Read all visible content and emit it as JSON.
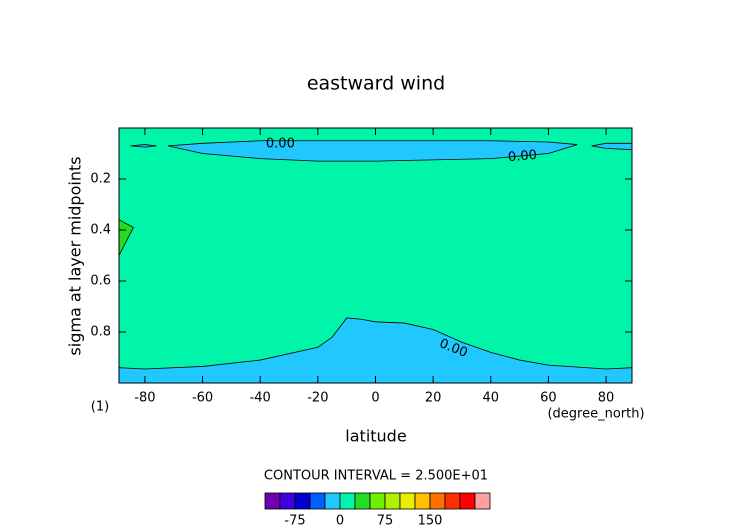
{
  "chart_data": {
    "type": "contour",
    "title": "eastward wind",
    "x_label": "latitude",
    "x_unit": "(degree_north)",
    "y_label": "sigma at layer midpoints",
    "corner_label": "(1)",
    "interval_label": "CONTOUR INTERVAL = 2.500E+01",
    "xlim": [
      -89,
      89
    ],
    "xticks": [
      -80,
      -60,
      -40,
      -20,
      0,
      20,
      40,
      60,
      80
    ],
    "ylim": [
      0,
      1
    ],
    "y_inverted": true,
    "yticks": [
      0.2,
      0.4,
      0.6,
      0.8
    ],
    "background_fill": "#00f5a8",
    "contours": [
      {
        "level": 0,
        "label": "0.00",
        "fill": "#20c8ff",
        "x": [
          -72,
          -60,
          -40,
          -20,
          0,
          20,
          40,
          60,
          70,
          60,
          40,
          20,
          0,
          -20,
          -40,
          -60
        ],
        "y": [
          0.07,
          0.06,
          0.05,
          0.05,
          0.05,
          0.05,
          0.05,
          0.055,
          0.065,
          0.1,
          0.12,
          0.125,
          0.13,
          0.13,
          0.12,
          0.1
        ]
      },
      {
        "level": 0,
        "fill": "#20c8ff",
        "x": [
          -85,
          -80,
          -76,
          -80
        ],
        "y": [
          0.07,
          0.065,
          0.07,
          0.075
        ]
      },
      {
        "level": 0,
        "fill": "#20c8ff",
        "x": [
          75,
          80,
          89,
          89,
          80
        ],
        "y": [
          0.07,
          0.06,
          0.06,
          0.085,
          0.08
        ]
      },
      {
        "level": 0,
        "label": "0.00",
        "fill": "#20c8ff",
        "x": [
          -89,
          -80,
          -60,
          -40,
          -20,
          -15,
          -10,
          -5,
          0,
          10,
          20,
          30,
          40,
          50,
          60,
          80,
          89,
          89,
          -89
        ],
        "y": [
          0.94,
          0.945,
          0.935,
          0.91,
          0.86,
          0.82,
          0.745,
          0.75,
          0.76,
          0.765,
          0.79,
          0.84,
          0.88,
          0.91,
          0.93,
          0.945,
          0.94,
          1,
          1
        ]
      },
      {
        "level": 25,
        "fill": "#22dd22",
        "x": [
          -89,
          -84,
          -89
        ],
        "y": [
          0.36,
          0.39,
          0.5
        ]
      }
    ],
    "colorbar": {
      "levels": [
        -125,
        -100,
        -75,
        -50,
        -25,
        0,
        25,
        50,
        75,
        100,
        125,
        150,
        175,
        200,
        225,
        250
      ],
      "colors": [
        "#7000b0",
        "#4000e0",
        "#0000d0",
        "#0060ff",
        "#20c8ff",
        "#00f5a8",
        "#22dd22",
        "#70f000",
        "#b0f000",
        "#e8f000",
        "#ffc000",
        "#ff7000",
        "#ff3000",
        "#ff0000",
        "#ffa0a0"
      ],
      "ticks": [
        -75,
        0,
        75,
        150
      ]
    }
  }
}
